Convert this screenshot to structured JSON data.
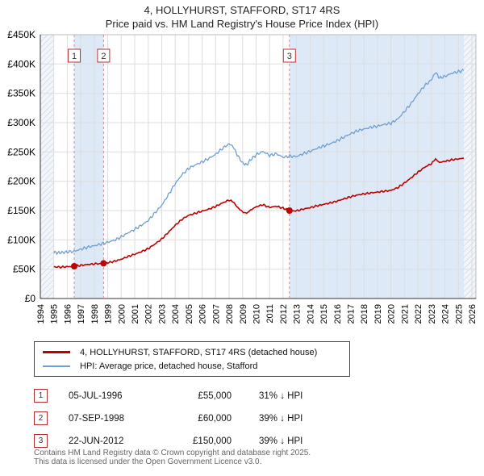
{
  "title": {
    "line1": "4, HOLLYHURST, STAFFORD, ST17 4RS",
    "line2": "Price paid vs. HM Land Registry's House Price Index (HPI)"
  },
  "colors": {
    "property": "#c00000",
    "hpi": "#6f9fd0",
    "band": "#dde9f6",
    "grid": "#dddddd",
    "dashed": "#dd8888",
    "marker_box_border": "#bb3333"
  },
  "legend": [
    {
      "label": "4, HOLLYHURST, STAFFORD, ST17 4RS (detached house)",
      "color": "#c00000"
    },
    {
      "label": "HPI: Average price, detached house, Stafford",
      "color": "#6f9fd0"
    }
  ],
  "transactions": [
    {
      "num": "1",
      "date": "05-JUL-1996",
      "price": "£55,000",
      "hpi": "31% ↓ HPI"
    },
    {
      "num": "2",
      "date": "07-SEP-1998",
      "price": "£60,000",
      "hpi": "39% ↓ HPI"
    },
    {
      "num": "3",
      "date": "22-JUN-2012",
      "price": "£150,000",
      "hpi": "39% ↓ HPI"
    }
  ],
  "footer": {
    "line1": "Contains HM Land Registry data © Crown copyright and database right 2025.",
    "line2": "This data is licensed under the Open Government Licence v3.0."
  },
  "chart_data": {
    "type": "line",
    "x_range": [
      1994,
      2026.3
    ],
    "y_range": [
      0,
      450000
    ],
    "x_ticks": [
      1994,
      1995,
      1996,
      1997,
      1998,
      1999,
      2000,
      2001,
      2002,
      2003,
      2004,
      2005,
      2006,
      2007,
      2008,
      2009,
      2010,
      2011,
      2012,
      2013,
      2014,
      2015,
      2016,
      2017,
      2018,
      2019,
      2020,
      2021,
      2022,
      2023,
      2024,
      2025,
      2026
    ],
    "y_ticks": [
      {
        "v": 0,
        "label": "£0"
      },
      {
        "v": 50000,
        "label": "£50K"
      },
      {
        "v": 100000,
        "label": "£100K"
      },
      {
        "v": 150000,
        "label": "£150K"
      },
      {
        "v": 200000,
        "label": "£200K"
      },
      {
        "v": 250000,
        "label": "£250K"
      },
      {
        "v": 300000,
        "label": "£300K"
      },
      {
        "v": 350000,
        "label": "£350K"
      },
      {
        "v": 400000,
        "label": "£400K"
      },
      {
        "v": 450000,
        "label": "£450K"
      }
    ],
    "bands": [
      [
        1996.51,
        1998.69
      ],
      [
        2012.47,
        2025.4
      ]
    ],
    "hatch": [
      [
        1994,
        1995.0
      ],
      [
        2025.4,
        2026.3
      ]
    ],
    "markers": [
      {
        "num": "1",
        "x": 1996.51,
        "y": 55000
      },
      {
        "num": "2",
        "x": 1998.69,
        "y": 60000
      },
      {
        "num": "3",
        "x": 2012.47,
        "y": 150000
      }
    ],
    "series": [
      {
        "name": "4, HOLLYHURST, STAFFORD, ST17 4RS (detached house)",
        "color": "#c00000",
        "wiggle": 1600,
        "points": [
          [
            1995.0,
            54000
          ],
          [
            1995.5,
            53500
          ],
          [
            1996.0,
            54200
          ],
          [
            1996.51,
            55000
          ],
          [
            1997.0,
            56500
          ],
          [
            1997.5,
            58000
          ],
          [
            1998.0,
            59000
          ],
          [
            1998.69,
            60000
          ],
          [
            1999.0,
            61000
          ],
          [
            1999.5,
            63500
          ],
          [
            2000.0,
            67000
          ],
          [
            2000.5,
            71500
          ],
          [
            2001.0,
            75500
          ],
          [
            2001.5,
            80000
          ],
          [
            2002.0,
            85000
          ],
          [
            2002.5,
            93000
          ],
          [
            2003.0,
            101500
          ],
          [
            2003.5,
            113000
          ],
          [
            2004.0,
            125000
          ],
          [
            2004.5,
            135000
          ],
          [
            2005.0,
            142000
          ],
          [
            2005.5,
            145500
          ],
          [
            2006.0,
            149000
          ],
          [
            2006.5,
            152500
          ],
          [
            2007.0,
            157000
          ],
          [
            2007.5,
            163000
          ],
          [
            2008.0,
            168000
          ],
          [
            2008.3,
            165000
          ],
          [
            2008.6,
            156000
          ],
          [
            2009.0,
            147500
          ],
          [
            2009.3,
            145500
          ],
          [
            2009.6,
            151000
          ],
          [
            2010.0,
            156500
          ],
          [
            2010.5,
            160000
          ],
          [
            2011.0,
            155500
          ],
          [
            2011.5,
            157500
          ],
          [
            2012.0,
            154000
          ],
          [
            2012.47,
            150000
          ],
          [
            2013.0,
            149500
          ],
          [
            2013.5,
            152500
          ],
          [
            2014.0,
            155000
          ],
          [
            2014.5,
            158000
          ],
          [
            2015.0,
            160500
          ],
          [
            2015.5,
            163000
          ],
          [
            2016.0,
            166000
          ],
          [
            2016.5,
            170000
          ],
          [
            2017.0,
            173500
          ],
          [
            2017.5,
            176500
          ],
          [
            2018.0,
            178500
          ],
          [
            2018.5,
            180000
          ],
          [
            2019.0,
            181500
          ],
          [
            2019.5,
            183000
          ],
          [
            2020.0,
            184500
          ],
          [
            2020.5,
            189000
          ],
          [
            2021.0,
            197000
          ],
          [
            2021.5,
            206000
          ],
          [
            2022.0,
            215500
          ],
          [
            2022.5,
            224000
          ],
          [
            2023.0,
            230000
          ],
          [
            2023.3,
            238000
          ],
          [
            2023.6,
            232000
          ],
          [
            2024.0,
            234000
          ],
          [
            2024.5,
            236500
          ],
          [
            2025.0,
            238000
          ],
          [
            2025.4,
            239500
          ]
        ]
      },
      {
        "name": "HPI: Average price, detached house, Stafford",
        "color": "#6f9fd0",
        "wiggle": 2600,
        "points": [
          [
            1995.0,
            79000
          ],
          [
            1995.3,
            78000
          ],
          [
            1995.6,
            78500
          ],
          [
            1996.0,
            79500
          ],
          [
            1996.5,
            80500
          ],
          [
            1997.0,
            84000
          ],
          [
            1997.5,
            87500
          ],
          [
            1998.0,
            90000
          ],
          [
            1998.5,
            93000
          ],
          [
            1999.0,
            96000
          ],
          [
            1999.5,
            99500
          ],
          [
            2000.0,
            105000
          ],
          [
            2000.5,
            112000
          ],
          [
            2001.0,
            118000
          ],
          [
            2001.5,
            125000
          ],
          [
            2002.0,
            133000
          ],
          [
            2002.5,
            146000
          ],
          [
            2003.0,
            159000
          ],
          [
            2003.5,
            177000
          ],
          [
            2004.0,
            196000
          ],
          [
            2004.5,
            211000
          ],
          [
            2005.0,
            222000
          ],
          [
            2005.5,
            228000
          ],
          [
            2006.0,
            233000
          ],
          [
            2006.5,
            239000
          ],
          [
            2007.0,
            246000
          ],
          [
            2007.5,
            256000
          ],
          [
            2008.0,
            264000
          ],
          [
            2008.3,
            259000
          ],
          [
            2008.6,
            245000
          ],
          [
            2009.0,
            231000
          ],
          [
            2009.3,
            228000
          ],
          [
            2009.6,
            237000
          ],
          [
            2010.0,
            245000
          ],
          [
            2010.5,
            251000
          ],
          [
            2011.0,
            244000
          ],
          [
            2011.5,
            247000
          ],
          [
            2012.0,
            241000
          ],
          [
            2012.5,
            243000
          ],
          [
            2013.0,
            242000
          ],
          [
            2013.5,
            247000
          ],
          [
            2014.0,
            251000
          ],
          [
            2014.5,
            256000
          ],
          [
            2015.0,
            260000
          ],
          [
            2015.5,
            264000
          ],
          [
            2016.0,
            269000
          ],
          [
            2016.5,
            275000
          ],
          [
            2017.0,
            281000
          ],
          [
            2017.5,
            286000
          ],
          [
            2018.0,
            289000
          ],
          [
            2018.5,
            292000
          ],
          [
            2019.0,
            294000
          ],
          [
            2019.5,
            297000
          ],
          [
            2020.0,
            299000
          ],
          [
            2020.5,
            306000
          ],
          [
            2021.0,
            319000
          ],
          [
            2021.5,
            333000
          ],
          [
            2022.0,
            349000
          ],
          [
            2022.5,
            363000
          ],
          [
            2023.0,
            373000
          ],
          [
            2023.3,
            386000
          ],
          [
            2023.6,
            376000
          ],
          [
            2024.0,
            379000
          ],
          [
            2024.5,
            384000
          ],
          [
            2025.0,
            387000
          ],
          [
            2025.4,
            389000
          ]
        ]
      }
    ]
  }
}
